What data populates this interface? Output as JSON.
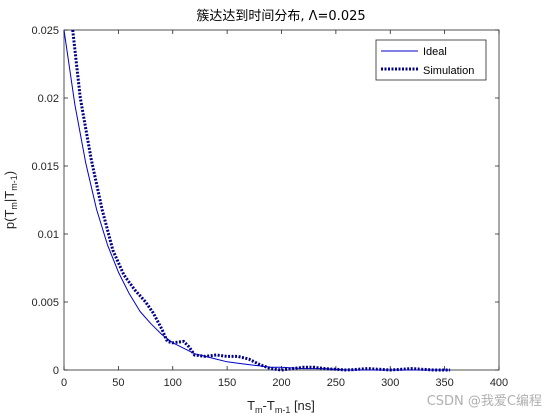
{
  "chart_data": {
    "type": "line",
    "title": "簇达达到时间分布, Λ=0.025",
    "xlabel": {
      "main": "T",
      "sub1": "m",
      "mid": "-T",
      "sub2": "m-1",
      "tail": " [ns]"
    },
    "ylabel": {
      "open": "p(T",
      "sub1": "m",
      "bar": "|T",
      "sub2": "m-1",
      "close": ")"
    },
    "xlim": [
      0,
      400
    ],
    "ylim": [
      0,
      0.025
    ],
    "xticks": [
      "0",
      "50",
      "100",
      "150",
      "200",
      "250",
      "300",
      "350",
      "400"
    ],
    "yticks": [
      "0",
      "0.005",
      "0.01",
      "0.015",
      "0.02",
      "0.025"
    ],
    "legend_position": "top-right",
    "grid": false,
    "series": [
      {
        "name": "Ideal",
        "style": "solid",
        "color": "#0000cc",
        "x": [
          0,
          10,
          20,
          30,
          40,
          50,
          60,
          70,
          80,
          90,
          100,
          110,
          120,
          130,
          140,
          150,
          160,
          170,
          180,
          190,
          200,
          220,
          240,
          260,
          280,
          300,
          320,
          340,
          355
        ],
        "y": [
          0.025,
          0.0195,
          0.0152,
          0.0118,
          0.0092,
          0.0072,
          0.0056,
          0.0043,
          0.0034,
          0.0026,
          0.002,
          0.0016,
          0.0012,
          0.001,
          0.0008,
          0.0006,
          0.0005,
          0.0004,
          0.0003,
          0.0002,
          0.0002,
          0.0001,
          0.0001,
          0.0,
          0.0,
          0.0,
          0.0,
          0.0,
          0.0
        ]
      },
      {
        "name": "Simulation",
        "style": "dotted",
        "color": "#00008b",
        "x": [
          8,
          15,
          25,
          35,
          45,
          55,
          65,
          75,
          82,
          90,
          95,
          100,
          110,
          115,
          120,
          130,
          140,
          150,
          160,
          170,
          180,
          190,
          200,
          210,
          220,
          230,
          240,
          260,
          280,
          300,
          320,
          340,
          355
        ],
        "y": [
          0.025,
          0.02,
          0.0155,
          0.0118,
          0.0088,
          0.007,
          0.0059,
          0.005,
          0.0042,
          0.003,
          0.0021,
          0.002,
          0.0021,
          0.0017,
          0.0011,
          0.001,
          0.0011,
          0.001,
          0.001,
          0.0008,
          0.0004,
          0.0001,
          0.0,
          0.0001,
          0.0002,
          0.0002,
          0.0001,
          0.0,
          0.0001,
          0.0,
          0.0001,
          0.0,
          0.0
        ]
      }
    ]
  },
  "watermark": "CSDN @我爱C编程"
}
